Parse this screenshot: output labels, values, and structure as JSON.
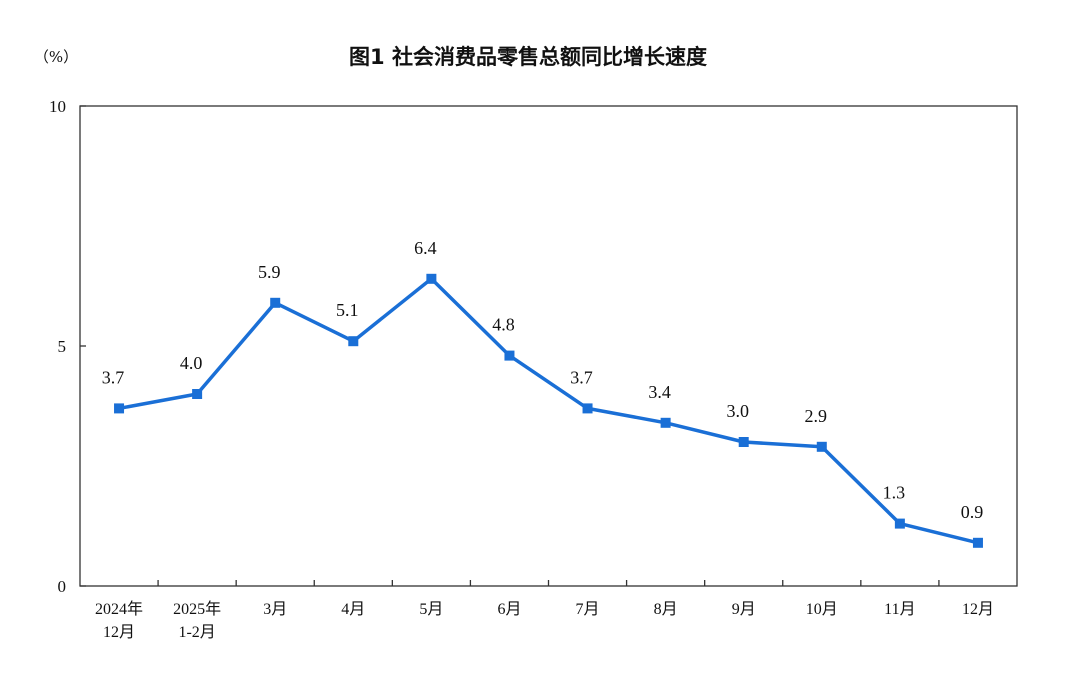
{
  "chart_data": {
    "type": "line",
    "title": "图1  社会消费品零售总额同比增长速度",
    "ylabel": "（%）",
    "xlabel": "",
    "ylim": [
      0,
      10
    ],
    "yticks": [
      "0",
      "5",
      "10"
    ],
    "grid": false,
    "categories": [
      [
        "2024年",
        "12月"
      ],
      [
        "2025年",
        "1-2月"
      ],
      [
        "3月"
      ],
      [
        "4月"
      ],
      [
        "5月"
      ],
      [
        "6月"
      ],
      [
        "7月"
      ],
      [
        "8月"
      ],
      [
        "9月"
      ],
      [
        "10月"
      ],
      [
        "11月"
      ],
      [
        "12月"
      ]
    ],
    "values": [
      3.7,
      4.0,
      5.9,
      5.1,
      6.4,
      4.8,
      3.7,
      3.4,
      3.0,
      2.9,
      1.3,
      0.9
    ],
    "data_labels": [
      "3.7",
      "4.0",
      "5.9",
      "5.1",
      "6.4",
      "4.8",
      "3.7",
      "3.4",
      "3.0",
      "2.9",
      "1.3",
      "0.9"
    ],
    "colors": {
      "line": "#1a6fd6",
      "axis": "#333333"
    }
  }
}
